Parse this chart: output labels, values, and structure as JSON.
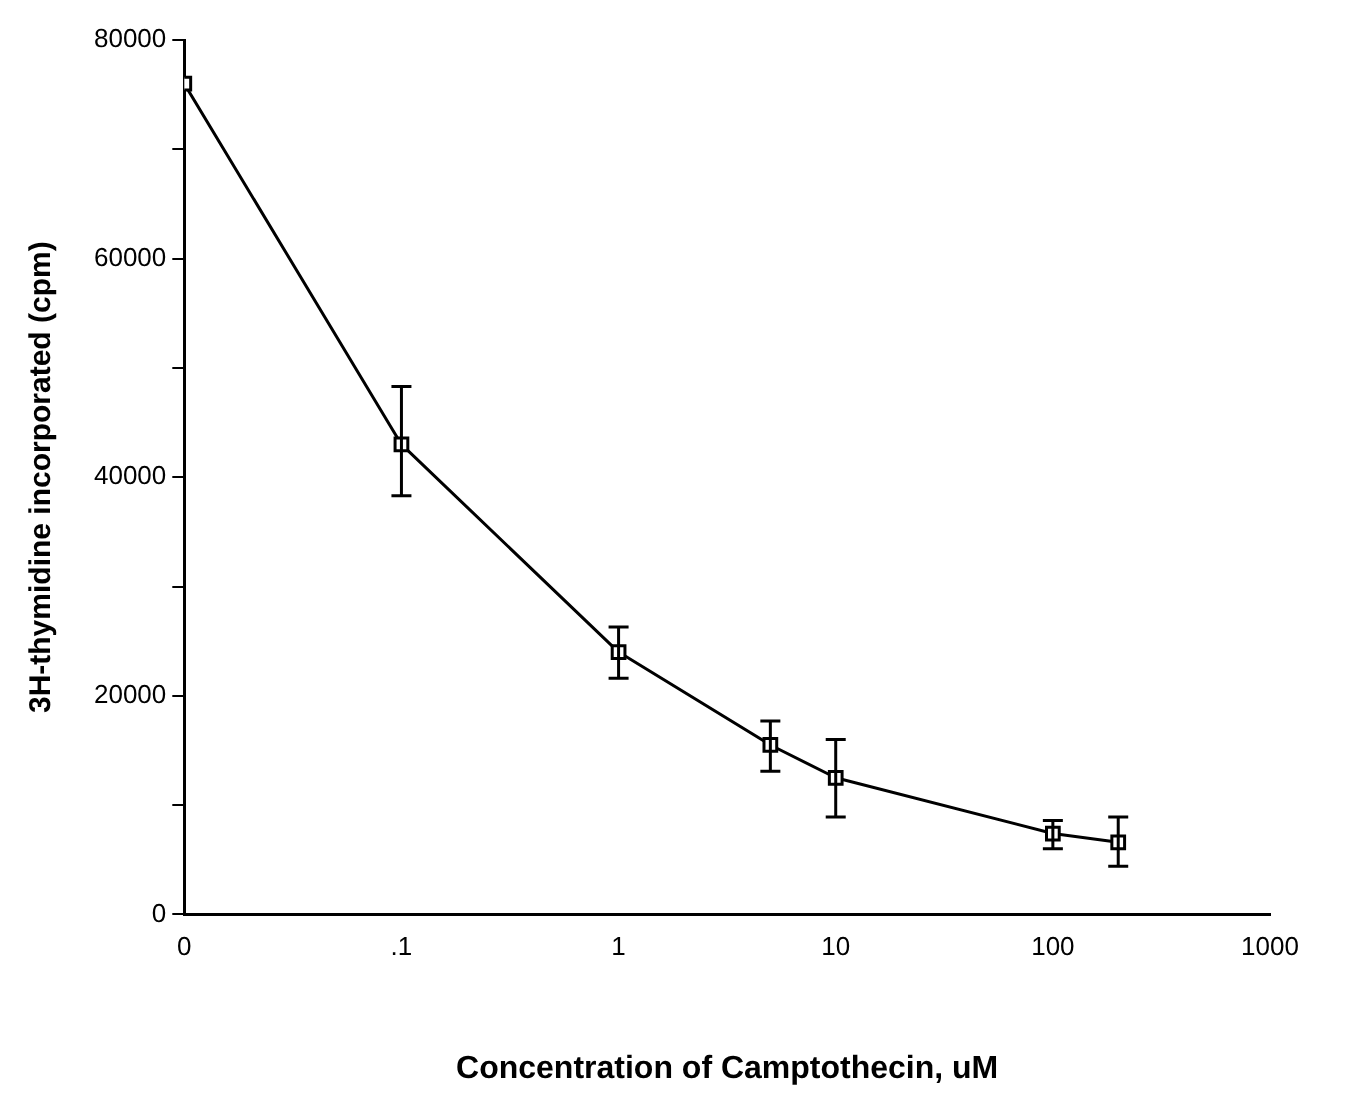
{
  "chart_data": {
    "type": "line",
    "xlabel": "Concentration of Camptothecin, uM",
    "ylabel": "3H-thymidine incorporated (cpm)",
    "x": [
      0.01,
      0.1,
      1,
      5,
      10,
      100,
      200
    ],
    "values": [
      76000,
      43000,
      24000,
      15500,
      12500,
      7400,
      6600
    ],
    "errors": [
      null,
      [
        38300,
        48300
      ],
      [
        21600,
        26300
      ],
      [
        13100,
        17700
      ],
      [
        8900,
        16000
      ],
      [
        6000,
        8600
      ],
      [
        4400,
        8900
      ]
    ],
    "color": "#000000",
    "marker": "square",
    "line_style": "solid",
    "log": "x",
    "grid": false,
    "legend": false,
    "xlim": [
      0.01,
      1000
    ],
    "xticks": [
      {
        "value": 0.01,
        "label": "0"
      },
      {
        "value": 0.1,
        "label": ".1"
      },
      1,
      10,
      100,
      1000
    ],
    "ylim": [
      0,
      80000
    ],
    "yticks": [
      0,
      {
        "value": 10000,
        "label": null
      },
      20000,
      {
        "value": 30000,
        "label": null
      },
      40000,
      {
        "value": 50000,
        "label": null
      },
      60000,
      {
        "value": 70000,
        "label": null
      },
      80000
    ]
  }
}
